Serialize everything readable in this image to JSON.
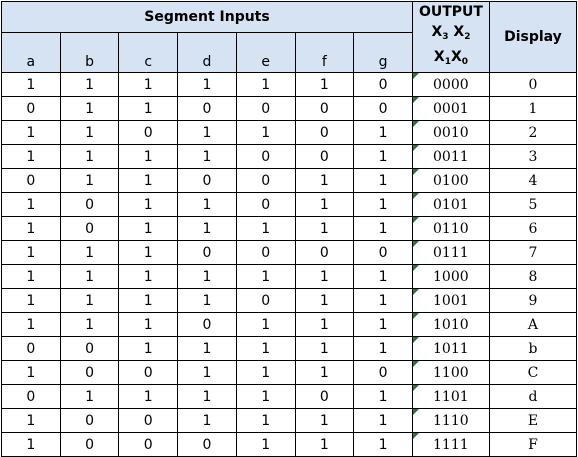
{
  "header": {
    "segment_inputs_title": "Segment Inputs",
    "output_title": "OUTPUT",
    "output_bits": [
      {
        "base": "X",
        "sub": "3"
      },
      {
        "base": "X",
        "sub": "2"
      },
      {
        "base": "X",
        "sub": "1"
      },
      {
        "base": "X",
        "sub": "0"
      }
    ],
    "display_title": "Display",
    "segments": [
      "a",
      "b",
      "c",
      "d",
      "e",
      "f",
      "g"
    ]
  },
  "colors": {
    "header_bg": "#d6e3f3",
    "marker": "#1e7b34"
  },
  "rows": [
    {
      "seg": [
        "1",
        "1",
        "1",
        "1",
        "1",
        "1",
        "0"
      ],
      "output": "0000",
      "display": "0"
    },
    {
      "seg": [
        "0",
        "1",
        "1",
        "0",
        "0",
        "0",
        "0"
      ],
      "output": "0001",
      "display": "1"
    },
    {
      "seg": [
        "1",
        "1",
        "0",
        "1",
        "1",
        "0",
        "1"
      ],
      "output": "0010",
      "display": "2"
    },
    {
      "seg": [
        "1",
        "1",
        "1",
        "1",
        "0",
        "0",
        "1"
      ],
      "output": "0011",
      "display": "3"
    },
    {
      "seg": [
        "0",
        "1",
        "1",
        "0",
        "0",
        "1",
        "1"
      ],
      "output": "0100",
      "display": "4"
    },
    {
      "seg": [
        "1",
        "0",
        "1",
        "1",
        "0",
        "1",
        "1"
      ],
      "output": "0101",
      "display": "5"
    },
    {
      "seg": [
        "1",
        "0",
        "1",
        "1",
        "1",
        "1",
        "1"
      ],
      "output": "0110",
      "display": "6"
    },
    {
      "seg": [
        "1",
        "1",
        "1",
        "0",
        "0",
        "0",
        "0"
      ],
      "output": "0111",
      "display": "7"
    },
    {
      "seg": [
        "1",
        "1",
        "1",
        "1",
        "1",
        "1",
        "1"
      ],
      "output": "1000",
      "display": "8"
    },
    {
      "seg": [
        "1",
        "1",
        "1",
        "1",
        "0",
        "1",
        "1"
      ],
      "output": "1001",
      "display": "9"
    },
    {
      "seg": [
        "1",
        "1",
        "1",
        "0",
        "1",
        "1",
        "1"
      ],
      "output": "1010",
      "display": "A"
    },
    {
      "seg": [
        "0",
        "0",
        "1",
        "1",
        "1",
        "1",
        "1"
      ],
      "output": "1011",
      "display": "b"
    },
    {
      "seg": [
        "1",
        "0",
        "0",
        "1",
        "1",
        "1",
        "0"
      ],
      "output": "1100",
      "display": "C"
    },
    {
      "seg": [
        "0",
        "1",
        "1",
        "1",
        "1",
        "0",
        "1"
      ],
      "output": "1101",
      "display": "d"
    },
    {
      "seg": [
        "1",
        "0",
        "0",
        "1",
        "1",
        "1",
        "1"
      ],
      "output": "1110",
      "display": "E"
    },
    {
      "seg": [
        "1",
        "0",
        "0",
        "0",
        "1",
        "1",
        "1"
      ],
      "output": "1111",
      "display": "F"
    }
  ]
}
